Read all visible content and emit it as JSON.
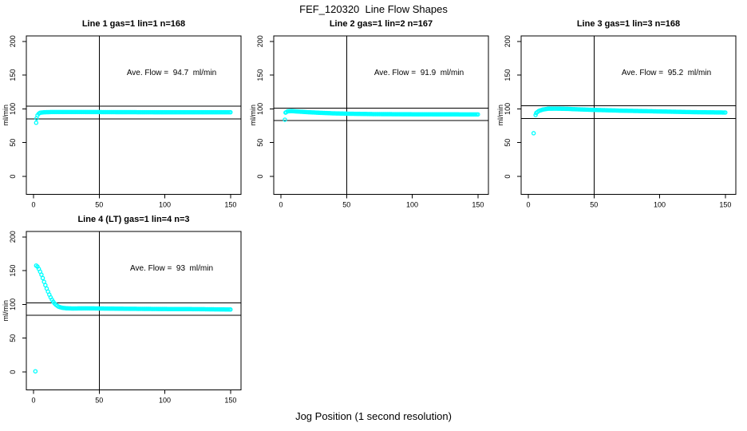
{
  "figure": {
    "background": "#ffffff",
    "point_color": "#00FFFF",
    "line_color": "#000000"
  },
  "chart_data": {
    "type": "scatter",
    "title": "FEF_120320  Line Flow Shapes",
    "xlabel": "Jog Position (1 second resolution)",
    "ylabel": "ml/min",
    "marker": "open-circle",
    "grid": false,
    "x_ticks": [
      0,
      50,
      100,
      150
    ],
    "y_ticks": [
      0,
      50,
      100,
      150,
      200
    ],
    "xlim": [
      -5.5,
      158
    ],
    "ylim": [
      -26.5,
      208
    ],
    "vline_x": 50,
    "panels": [
      {
        "title": "Line 1 gas=1 lin=1 n=168",
        "annotation": "Ave. Flow =  94.7  ml/min",
        "ave_flow": 94.7,
        "n": 168,
        "hlines": [
          104.2,
          85.2
        ],
        "outliers": [
          [
            2,
            79.5
          ]
        ],
        "keypoints": [
          [
            2.3,
            86
          ],
          [
            3,
            90.5
          ],
          [
            4,
            93
          ],
          [
            5,
            94.3
          ],
          [
            8,
            95
          ],
          [
            15,
            95.4
          ],
          [
            30,
            95.4
          ],
          [
            60,
            95.2
          ],
          [
            100,
            95
          ],
          [
            150,
            95
          ]
        ]
      },
      {
        "title": "Line 2 gas=1 lin=2 n=167",
        "annotation": "Ave. Flow =  91.9  ml/min",
        "ave_flow": 91.9,
        "n": 167,
        "hlines": [
          101.1,
          82.7
        ],
        "outliers": [
          [
            3,
            84
          ]
        ],
        "keypoints": [
          [
            3.5,
            94.5
          ],
          [
            5,
            96.3
          ],
          [
            8,
            96.8
          ],
          [
            12,
            96.2
          ],
          [
            20,
            95.2
          ],
          [
            30,
            94.2
          ],
          [
            40,
            93.4
          ],
          [
            50,
            92.9
          ],
          [
            70,
            92.3
          ],
          [
            100,
            92
          ],
          [
            150,
            91.8
          ]
        ]
      },
      {
        "title": "Line 3 gas=1 lin=3 n=168",
        "annotation": "Ave. Flow =  95.2  ml/min",
        "ave_flow": 95.2,
        "n": 168,
        "hlines": [
          104.7,
          85.7
        ],
        "outliers": [
          [
            4,
            64
          ]
        ],
        "keypoints": [
          [
            5.5,
            91
          ],
          [
            6,
            94
          ],
          [
            8,
            97
          ],
          [
            11,
            99
          ],
          [
            15,
            100.3
          ],
          [
            22,
            100.4
          ],
          [
            30,
            100
          ],
          [
            40,
            99.2
          ],
          [
            50,
            98.5
          ],
          [
            70,
            97.4
          ],
          [
            100,
            96.2
          ],
          [
            125,
            95.2
          ],
          [
            150,
            94.6
          ]
        ]
      },
      {
        "title": "Line 4 (LT) gas=1 lin=4 n=3",
        "annotation": "Ave. Flow =  93  ml/min",
        "ave_flow": 93,
        "n": 3,
        "hlines": [
          102.3,
          83.7
        ],
        "outliers": [
          [
            1.4,
            1
          ]
        ],
        "keypoints": [
          [
            2,
            157.5
          ],
          [
            2.6,
            157
          ],
          [
            3,
            156
          ],
          [
            4,
            152.5
          ],
          [
            5,
            148.5
          ],
          [
            6,
            144
          ],
          [
            7,
            139
          ],
          [
            8,
            133.5
          ],
          [
            9,
            128.5
          ],
          [
            10,
            123.5
          ],
          [
            11,
            119
          ],
          [
            12,
            114.5
          ],
          [
            13,
            110.5
          ],
          [
            14,
            107
          ],
          [
            15,
            104
          ],
          [
            16,
            101.5
          ],
          [
            17,
            99.5
          ],
          [
            18,
            98
          ],
          [
            19,
            96.8
          ],
          [
            20,
            96
          ],
          [
            22,
            95
          ],
          [
            25,
            94.3
          ],
          [
            30,
            94
          ],
          [
            40,
            94.2
          ],
          [
            50,
            94
          ],
          [
            70,
            93.6
          ],
          [
            100,
            93.2
          ],
          [
            125,
            93
          ],
          [
            150,
            92.5
          ]
        ]
      }
    ]
  }
}
